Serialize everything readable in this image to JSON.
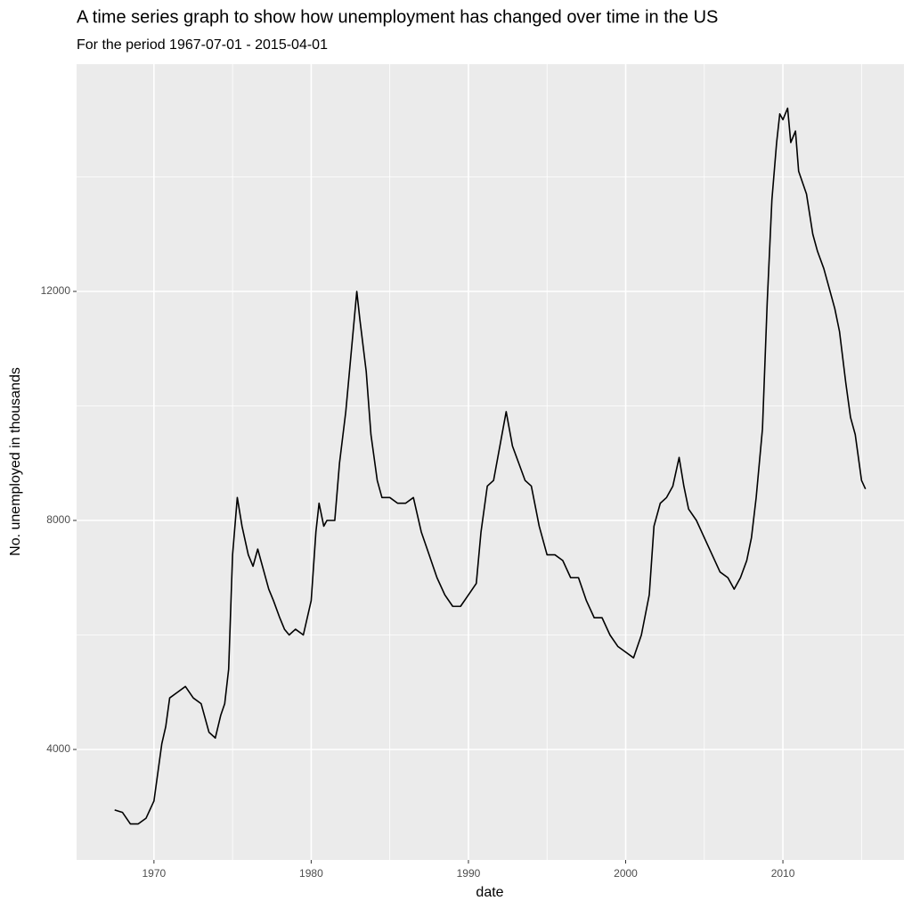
{
  "chart_data": {
    "type": "line",
    "title": "A time series graph to show how unemployment has changed over time in the US",
    "subtitle": "For the period  1967-07-01  -  2015-04-01",
    "x_label": "date",
    "y_label": "No. unemployed in thousands",
    "color": "#000000",
    "grid": true,
    "xlim": [
      1965.08,
      2017.7
    ],
    "xticks": [
      1970,
      1980,
      1990,
      2000,
      2010
    ],
    "xminor": [
      1975,
      1985,
      1995,
      2005,
      2015
    ],
    "ylim": [
      2070,
      15969
    ],
    "yticks": [
      4000,
      8000,
      12000
    ],
    "yminor": [
      6000,
      10000,
      14000
    ],
    "x": [
      1967.5,
      1968.0,
      1968.5,
      1969.0,
      1969.5,
      1970.0,
      1970.25,
      1970.5,
      1970.75,
      1971.0,
      1971.5,
      1972.0,
      1972.5,
      1973.0,
      1973.5,
      1973.9,
      1974.25,
      1974.5,
      1974.75,
      1975.0,
      1975.3,
      1975.6,
      1976.0,
      1976.3,
      1976.6,
      1977.0,
      1977.3,
      1977.6,
      1978.0,
      1978.3,
      1978.6,
      1979.0,
      1979.5,
      1980.0,
      1980.3,
      1980.5,
      1980.8,
      1981.0,
      1981.5,
      1981.8,
      1982.2,
      1982.5,
      1982.9,
      1983.1,
      1983.5,
      1983.8,
      1984.2,
      1984.5,
      1985.0,
      1985.5,
      1986.0,
      1986.5,
      1987.0,
      1987.5,
      1988.0,
      1988.5,
      1989.0,
      1989.5,
      1990.0,
      1990.5,
      1990.8,
      1991.2,
      1991.6,
      1992.0,
      1992.4,
      1992.8,
      1993.2,
      1993.6,
      1994.0,
      1994.5,
      1995.0,
      1995.5,
      1996.0,
      1996.5,
      1997.0,
      1997.5,
      1998.0,
      1998.5,
      1999.0,
      1999.5,
      2000.0,
      2000.5,
      2001.0,
      2001.5,
      2001.8,
      2002.2,
      2002.6,
      2003.0,
      2003.4,
      2003.7,
      2004.0,
      2004.5,
      2005.0,
      2005.5,
      2006.0,
      2006.5,
      2006.9,
      2007.3,
      2007.7,
      2008.0,
      2008.3,
      2008.7,
      2009.0,
      2009.3,
      2009.6,
      2009.8,
      2010.0,
      2010.3,
      2010.5,
      2010.8,
      2011.0,
      2011.5,
      2011.9,
      2012.2,
      2012.6,
      2012.9,
      2013.3,
      2013.6,
      2014.0,
      2014.3,
      2014.6,
      2015.0,
      2015.25
    ],
    "values": [
      2944,
      2900,
      2700,
      2700,
      2800,
      3100,
      3600,
      4100,
      4400,
      4900,
      5000,
      5100,
      4900,
      4800,
      4300,
      4200,
      4600,
      4800,
      5400,
      7400,
      8400,
      7900,
      7400,
      7200,
      7500,
      7100,
      6800,
      6600,
      6300,
      6100,
      6000,
      6100,
      6000,
      6600,
      7800,
      8300,
      7900,
      8000,
      8000,
      9000,
      9900,
      10800,
      12000,
      11500,
      10600,
      9500,
      8700,
      8400,
      8400,
      8300,
      8300,
      8400,
      7800,
      7400,
      7000,
      6700,
      6500,
      6500,
      6700,
      6900,
      7800,
      8600,
      8700,
      9300,
      9900,
      9300,
      9000,
      8700,
      8600,
      7900,
      7400,
      7400,
      7300,
      7000,
      7000,
      6600,
      6300,
      6300,
      6000,
      5800,
      5700,
      5600,
      6000,
      6700,
      7900,
      8300,
      8400,
      8600,
      9100,
      8600,
      8200,
      8000,
      7700,
      7400,
      7100,
      7000,
      6800,
      7000,
      7300,
      7700,
      8400,
      9600,
      11800,
      13600,
      14600,
      15100,
      15000,
      15200,
      14600,
      14800,
      14100,
      13700,
      13000,
      12700,
      12400,
      12100,
      11700,
      11300,
      10400,
      9800,
      9500,
      8700,
      8549
    ]
  }
}
